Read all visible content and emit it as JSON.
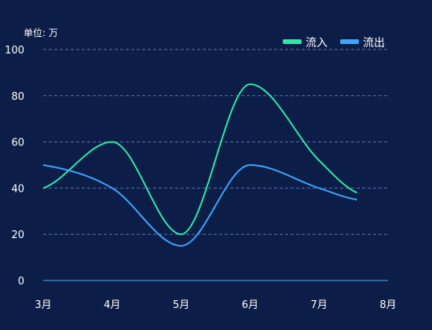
{
  "chart_data": {
    "type": "line",
    "unit_label": "单位: 万",
    "categories": [
      "3月",
      "4月",
      "5月",
      "6月",
      "7月",
      "8月"
    ],
    "ylim": [
      0,
      100
    ],
    "yticks": [
      0,
      20,
      40,
      60,
      80,
      100
    ],
    "grid": true,
    "legend": "top-right",
    "smooth": true,
    "series": [
      {
        "name": "流入",
        "color": "#2ee8a8",
        "x": [
          0,
          1,
          2,
          3,
          4,
          4.55
        ],
        "values": [
          40,
          60,
          20,
          85,
          52,
          38
        ]
      },
      {
        "name": "流出",
        "color": "#3aa6ff",
        "x": [
          0,
          1,
          2,
          3,
          4,
          4.55
        ],
        "values": [
          50,
          40,
          15,
          50,
          40,
          35
        ]
      }
    ],
    "colors": {
      "background": "#0c1d48",
      "grid": "#5878b0",
      "axis": "#58a6e8",
      "text": "#ffffff"
    }
  }
}
